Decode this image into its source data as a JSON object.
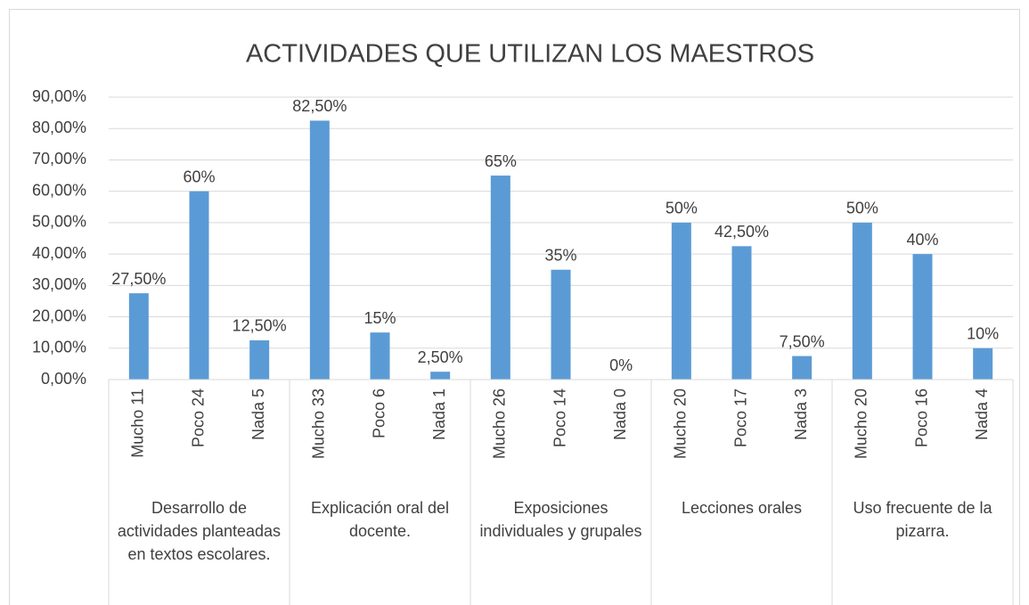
{
  "chart_data": {
    "type": "bar",
    "title": "ACTIVIDADES QUE UTILIZAN LOS MAESTROS",
    "categories": [
      "Mucho 11",
      "Poco 24",
      "Nada 5",
      "Mucho 33",
      "Poco 6",
      "Nada 1",
      "Mucho 26",
      "Poco 14",
      "Nada 0",
      "Mucho 20",
      "Poco 17",
      "Nada 3",
      "Mucho 20",
      "Poco 16",
      "Nada 4"
    ],
    "groups": [
      "Desarrollo de actividades planteadas en textos escolares.",
      "Explicación oral del docente.",
      "Exposiciones individuales y grupales",
      "Lecciones orales",
      "Uso frecuente de la pizarra."
    ],
    "values": [
      27.5,
      60,
      12.5,
      82.5,
      15,
      2.5,
      65,
      35,
      0,
      50,
      42.5,
      7.5,
      50,
      40,
      10
    ],
    "value_labels": [
      "27,50%",
      "60%",
      "12,50%",
      "82,50%",
      "15%",
      "2,50%",
      "65%",
      "35%",
      "0%",
      "50%",
      "42,50%",
      "7,50%",
      "50%",
      "40%",
      "10%"
    ],
    "color": "#5b9bd5",
    "ylim": [
      0,
      90
    ],
    "yticks": [
      {
        "value": 0,
        "label": "0,00%"
      },
      {
        "value": 10,
        "label": "10,00%"
      },
      {
        "value": 20,
        "label": "20,00%"
      },
      {
        "value": 30,
        "label": "30,00%"
      },
      {
        "value": 40,
        "label": "40,00%"
      },
      {
        "value": 50,
        "label": "50,00%"
      },
      {
        "value": 60,
        "label": "60,00%"
      },
      {
        "value": 70,
        "label": "70,00%"
      },
      {
        "value": 80,
        "label": "80,00%"
      },
      {
        "value": 90,
        "label": "90,00%"
      }
    ],
    "grid": true
  }
}
